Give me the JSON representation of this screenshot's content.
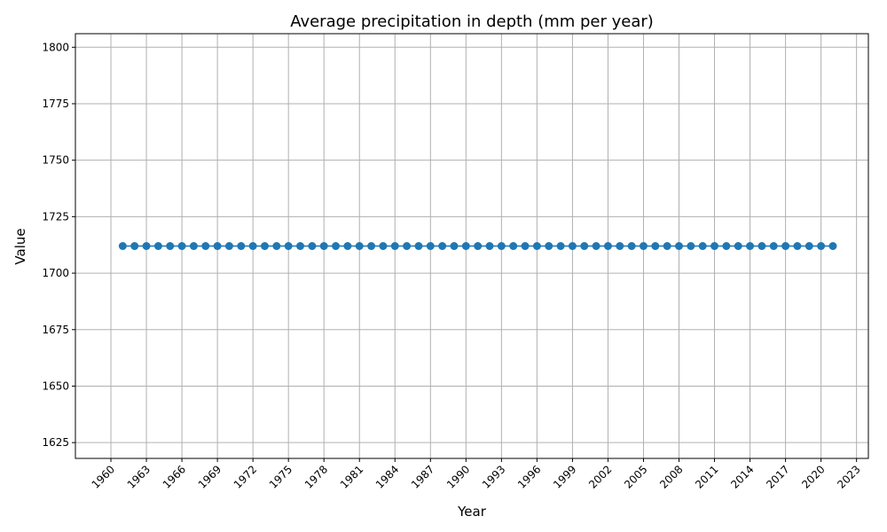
{
  "chart_data": {
    "type": "line",
    "title": "Average precipitation in depth (mm per year)",
    "xlabel": "Year",
    "ylabel": "Value",
    "xlim": [
      1957.0,
      2024.0
    ],
    "ylim": [
      1618.0,
      1806.0
    ],
    "x_ticks": [
      1960,
      1963,
      1966,
      1969,
      1972,
      1975,
      1978,
      1981,
      1984,
      1987,
      1990,
      1993,
      1996,
      1999,
      2002,
      2005,
      2008,
      2011,
      2014,
      2017,
      2020,
      2023
    ],
    "y_ticks": [
      1625,
      1650,
      1675,
      1700,
      1725,
      1750,
      1775,
      1800
    ],
    "grid": true,
    "series_color": "#1f77b4",
    "x": [
      1961,
      1962,
      1963,
      1964,
      1965,
      1966,
      1967,
      1968,
      1969,
      1970,
      1971,
      1972,
      1973,
      1974,
      1975,
      1976,
      1977,
      1978,
      1979,
      1980,
      1981,
      1982,
      1983,
      1984,
      1985,
      1986,
      1987,
      1988,
      1989,
      1990,
      1991,
      1992,
      1993,
      1994,
      1995,
      1996,
      1997,
      1998,
      1999,
      2000,
      2001,
      2002,
      2003,
      2004,
      2005,
      2006,
      2007,
      2008,
      2009,
      2010,
      2011,
      2012,
      2013,
      2014,
      2015,
      2016,
      2017,
      2018,
      2019,
      2020,
      2021
    ],
    "y": [
      1712,
      1712,
      1712,
      1712,
      1712,
      1712,
      1712,
      1712,
      1712,
      1712,
      1712,
      1712,
      1712,
      1712,
      1712,
      1712,
      1712,
      1712,
      1712,
      1712,
      1712,
      1712,
      1712,
      1712,
      1712,
      1712,
      1712,
      1712,
      1712,
      1712,
      1712,
      1712,
      1712,
      1712,
      1712,
      1712,
      1712,
      1712,
      1712,
      1712,
      1712,
      1712,
      1712,
      1712,
      1712,
      1712,
      1712,
      1712,
      1712,
      1712,
      1712,
      1712,
      1712,
      1712,
      1712,
      1712,
      1712,
      1712,
      1712,
      1712,
      1712
    ]
  }
}
